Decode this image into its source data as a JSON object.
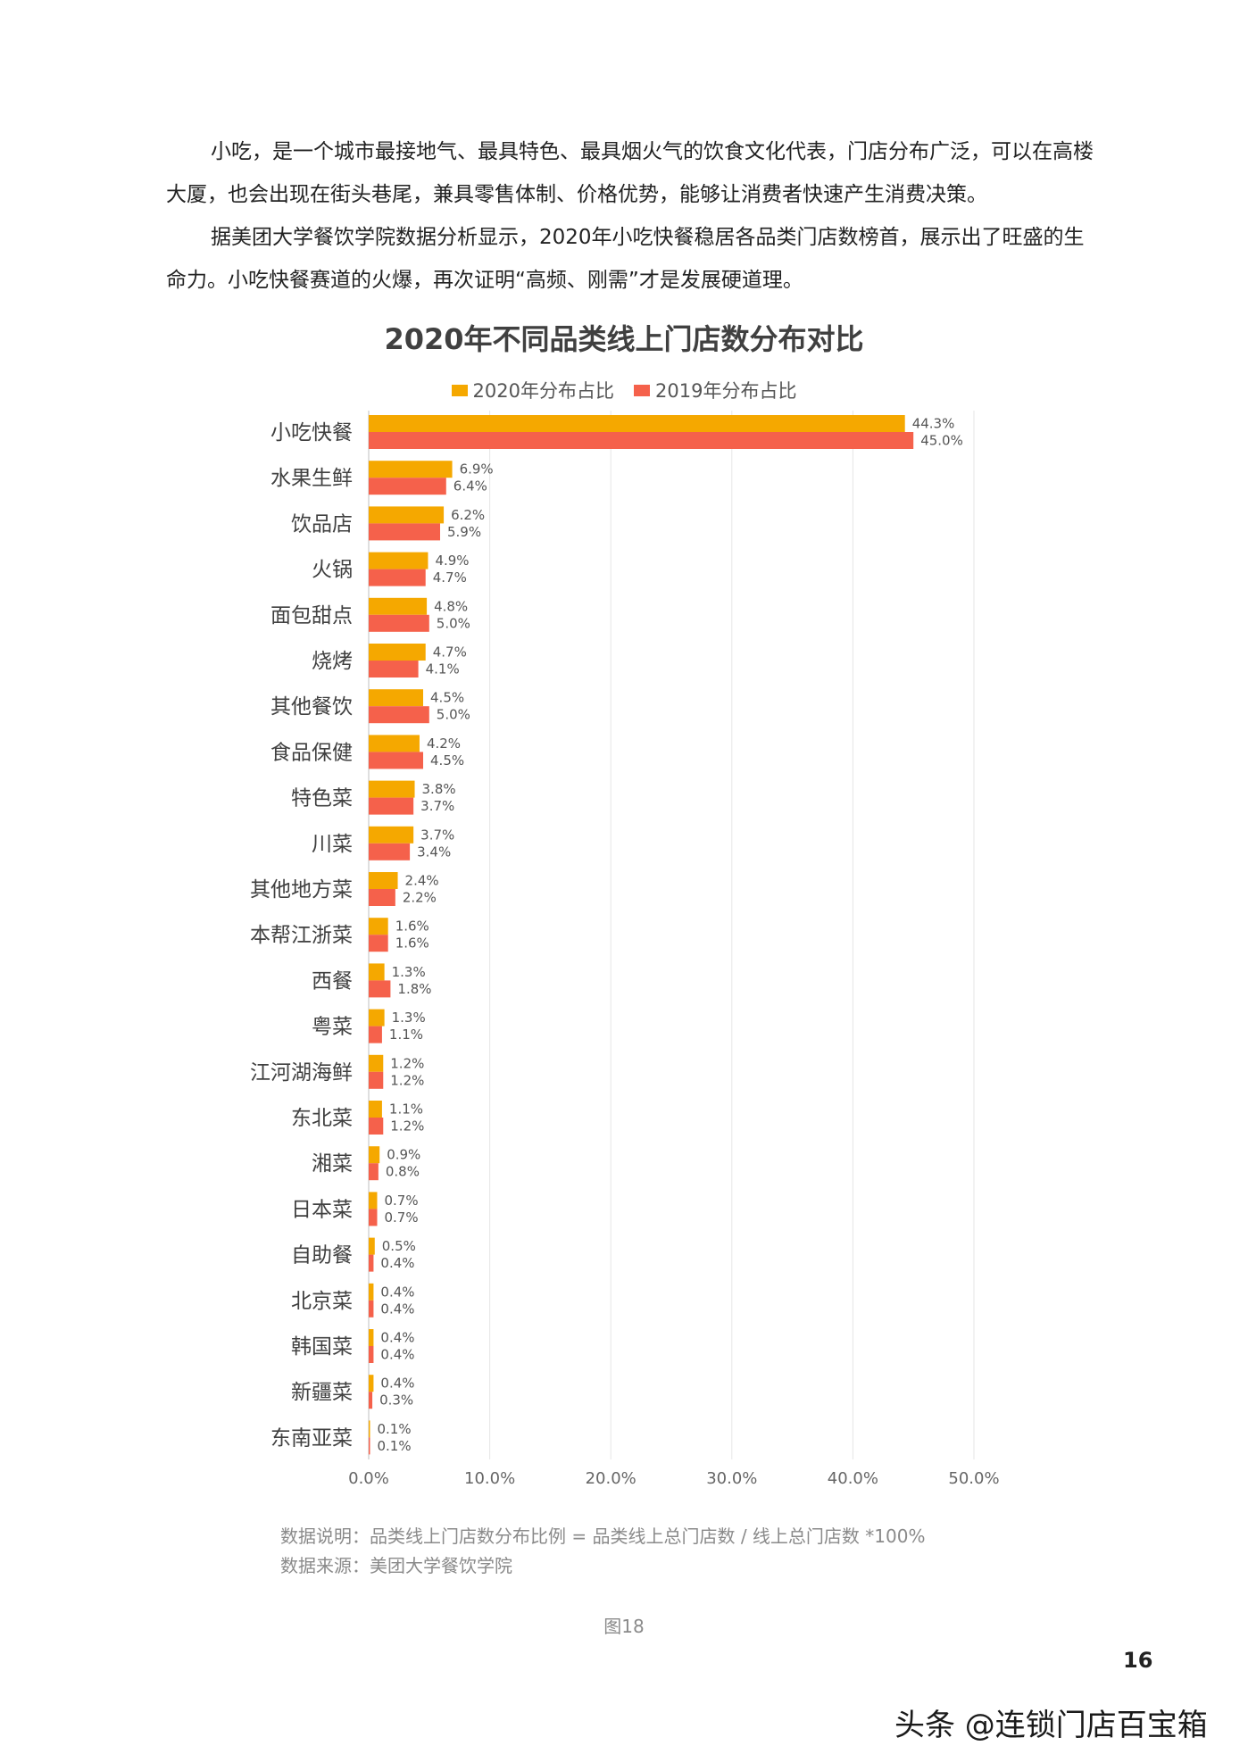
{
  "intro": {
    "p1": "小吃，是一个城市最接地气、最具特色、最具烟火气的饮食文化代表，门店分布广泛，可以在高楼大厦，也会出现在街头巷尾，兼具零售体制、价格优势，能够让消费者快速产生消费决策。",
    "p2": "据美团大学餐饮学院数据分析显示，2020年小吃快餐稳居各品类门店数榜首，展示出了旺盛的生命力。小吃快餐赛道的火爆，再次证明“高频、刚需”才是发展硬道理。"
  },
  "chart_data": {
    "type": "bar",
    "orientation": "horizontal",
    "title": "2020年不同品类线上门店数分布对比",
    "categories": [
      "小吃快餐",
      "水果生鲜",
      "饮品店",
      "火锅",
      "面包甜点",
      "烧烤",
      "其他餐饮",
      "食品保健",
      "特色菜",
      "川菜",
      "其他地方菜",
      "本帮江浙菜",
      "西餐",
      "粤菜",
      "江河湖海鲜",
      "东北菜",
      "湘菜",
      "日本菜",
      "自助餐",
      "北京菜",
      "韩国菜",
      "新疆菜",
      "东南亚菜"
    ],
    "series": [
      {
        "name": "2020年分布占比",
        "color": "#F5A800",
        "values": [
          44.3,
          6.9,
          6.2,
          4.9,
          4.8,
          4.7,
          4.5,
          4.2,
          3.8,
          3.7,
          2.4,
          1.6,
          1.3,
          1.3,
          1.2,
          1.1,
          0.9,
          0.7,
          0.5,
          0.4,
          0.4,
          0.4,
          0.1
        ]
      },
      {
        "name": "2019年分布占比",
        "color": "#F5614B",
        "values": [
          45.0,
          6.4,
          5.9,
          4.7,
          5.0,
          4.1,
          5.0,
          4.5,
          3.7,
          3.4,
          2.2,
          1.6,
          1.8,
          1.1,
          1.2,
          1.2,
          0.8,
          0.7,
          0.4,
          0.4,
          0.4,
          0.3,
          0.1
        ]
      }
    ],
    "xlim": [
      0,
      50
    ],
    "xticks": [
      "0.0%",
      "10.0%",
      "20.0%",
      "30.0%",
      "40.0%",
      "50.0%"
    ],
    "grid": true,
    "legend_position": "top-center",
    "value_format": "percent-1dp"
  },
  "notes": {
    "line1": "数据说明：品类线上门店数分布比例 = 品类线上总门店数 / 线上总门店数 *100%",
    "line2": "数据来源：美团大学餐饮学院"
  },
  "figure_label": "图18",
  "page_number": "16",
  "watermark": "头条 @连锁门店百宝箱"
}
